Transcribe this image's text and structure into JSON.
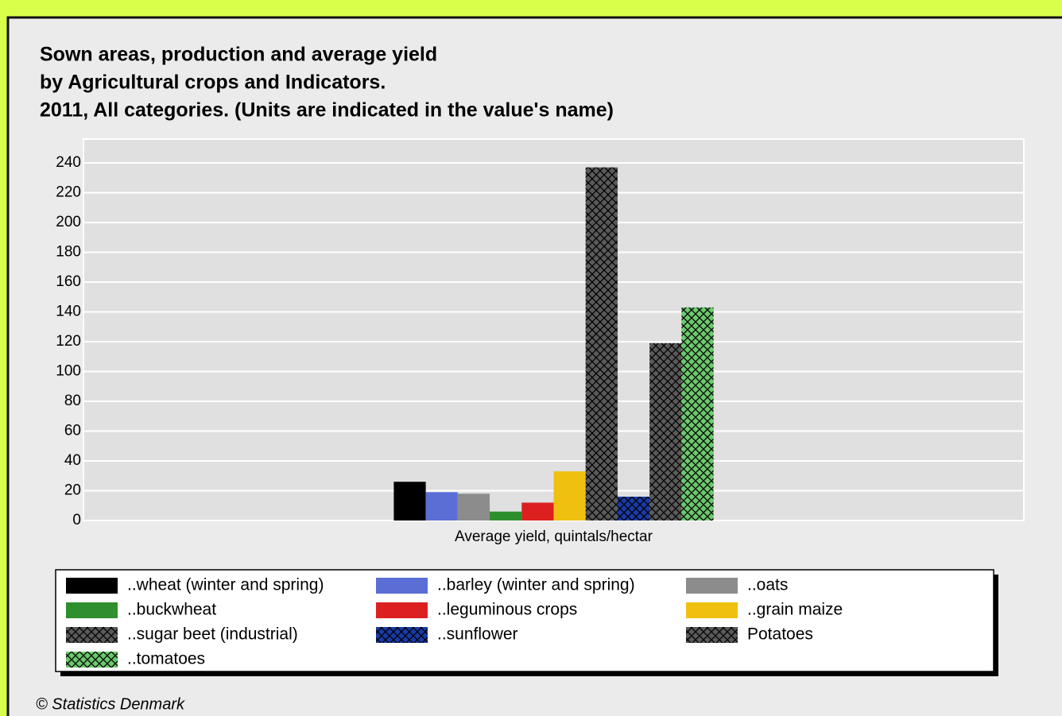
{
  "chart_data": {
    "type": "bar",
    "title_lines": [
      "Sown areas, production and average yield",
      "by Agricultural crops and Indicators.",
      "2011, All categories. (Units are indicated in the value's name)"
    ],
    "categories": [
      "Average yield, quintals/hectar"
    ],
    "series": [
      {
        "name": "..wheat (winter and spring)",
        "color": "#000000",
        "hatch": false,
        "values": [
          26
        ]
      },
      {
        "name": "..barley (winter and spring)",
        "color": "#5a6ed6",
        "hatch": false,
        "values": [
          19
        ]
      },
      {
        "name": "..oats",
        "color": "#8c8c8c",
        "hatch": false,
        "values": [
          18
        ]
      },
      {
        "name": "..buckwheat",
        "color": "#2e8f2e",
        "hatch": false,
        "values": [
          6
        ]
      },
      {
        "name": "..leguminous crops",
        "color": "#dc2020",
        "hatch": false,
        "values": [
          12
        ]
      },
      {
        "name": "..grain maize",
        "color": "#f0c010",
        "hatch": false,
        "values": [
          33
        ]
      },
      {
        "name": "..sugar beet (industrial)",
        "color": "#5a5a5a",
        "hatch": true,
        "values": [
          237
        ]
      },
      {
        "name": "..sunflower",
        "color": "#1a3aa8",
        "hatch": true,
        "values": [
          16
        ]
      },
      {
        "name": "Potatoes",
        "color": "#5a5a5a",
        "hatch": true,
        "values": [
          119
        ]
      },
      {
        "name": "..tomatoes",
        "color": "#6cc86c",
        "hatch": true,
        "values": [
          143
        ]
      }
    ],
    "ylim": [
      0,
      256
    ],
    "yticks": [
      0,
      20,
      40,
      60,
      80,
      100,
      120,
      140,
      160,
      180,
      200,
      220,
      240
    ],
    "grid": true,
    "legend": "bottom",
    "source": "© Statistics Denmark"
  }
}
